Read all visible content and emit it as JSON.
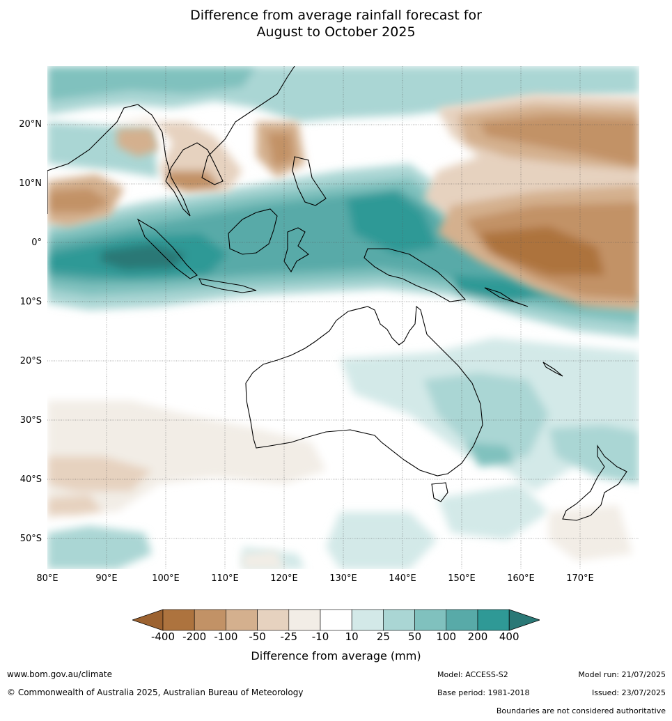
{
  "title": {
    "line1": "Difference from average rainfall forecast for",
    "line2": "August to October 2025"
  },
  "axes": {
    "lat_labels": [
      "20°N",
      "10°N",
      "0°",
      "10°S",
      "20°S",
      "30°S",
      "40°S",
      "50°S"
    ],
    "lon_labels": [
      "80°E",
      "90°E",
      "100°E",
      "110°E",
      "120°E",
      "130°E",
      "140°E",
      "150°E",
      "160°E",
      "170°E"
    ]
  },
  "legend": {
    "ticks": [
      "-400",
      "-200",
      "-100",
      "-50",
      "-25",
      "-10",
      "10",
      "25",
      "50",
      "100",
      "200",
      "400"
    ],
    "colors": [
      "#9c6230",
      "#ad733e",
      "#c29266",
      "#d4b08e",
      "#e6d2bf",
      "#f2ede6",
      "#ffffff",
      "#d3e9e8",
      "#aad6d4",
      "#80c1be",
      "#58aaa8",
      "#2f9996",
      "#2a7876"
    ],
    "label": "Difference from average (mm)"
  },
  "footer": {
    "url": "www.bom.gov.au/climate",
    "copyright": "© Commonwealth of Australia 2025, Australian Bureau of Meteorology",
    "model": "Model: ACCESS-S2",
    "base_period": "Base period: 1981-2018",
    "model_run": "Model run: 21/07/2025",
    "issued": "Issued: 23/07/2025",
    "disclaimer": "Boundaries are not considered authoritative"
  }
}
